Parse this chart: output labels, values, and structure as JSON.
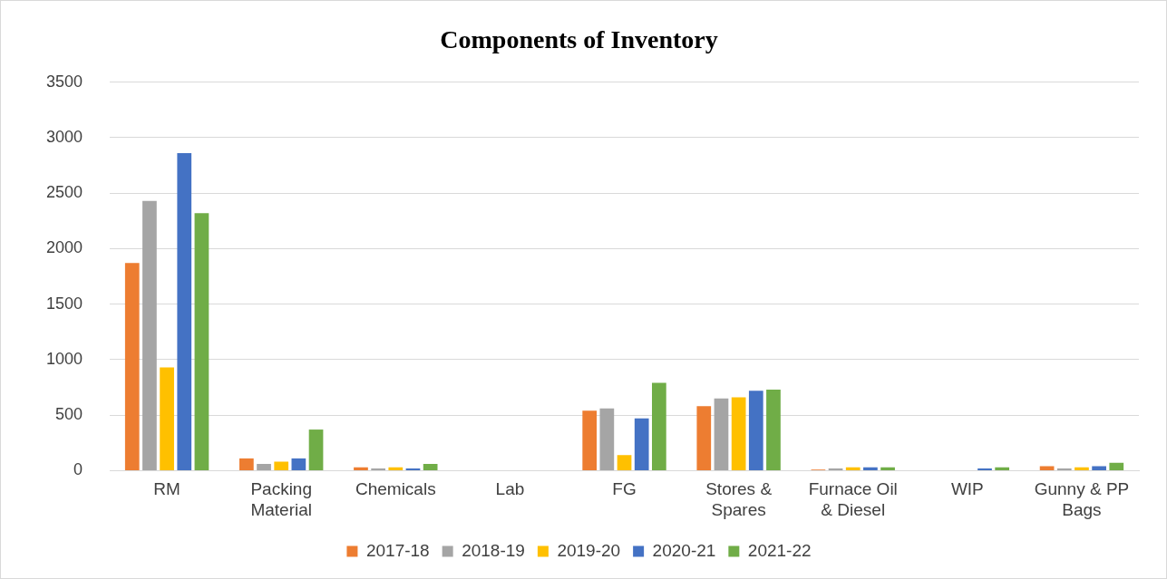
{
  "chart_data": {
    "type": "bar",
    "title": "Components of Inventory",
    "categories": [
      "RM",
      "Packing Material",
      "Chemicals",
      "Lab",
      "FG",
      "Stores & Spares",
      "Furnace Oil & Diesel",
      "WIP",
      "Gunny & PP Bags"
    ],
    "series": [
      {
        "name": "2017-18",
        "color": "#ed7d31",
        "values": [
          1870,
          110,
          30,
          0,
          540,
          580,
          10,
          0,
          40
        ]
      },
      {
        "name": "2018-19",
        "color": "#a5a5a5",
        "values": [
          2430,
          60,
          20,
          0,
          560,
          650,
          20,
          0,
          20
        ]
      },
      {
        "name": "2019-20",
        "color": "#ffc000",
        "values": [
          930,
          80,
          30,
          0,
          140,
          660,
          30,
          0,
          30
        ]
      },
      {
        "name": "2020-21",
        "color": "#4472c4",
        "values": [
          2860,
          110,
          20,
          0,
          470,
          720,
          30,
          20,
          40
        ]
      },
      {
        "name": "2021-22",
        "color": "#70ad47",
        "values": [
          2320,
          370,
          60,
          0,
          790,
          730,
          30,
          30,
          70
        ]
      }
    ],
    "ylim": [
      0,
      3500
    ],
    "yticks": [
      0,
      500,
      1000,
      1500,
      2000,
      2500,
      3000,
      3500
    ],
    "grid": "y",
    "legend": "bottom"
  }
}
